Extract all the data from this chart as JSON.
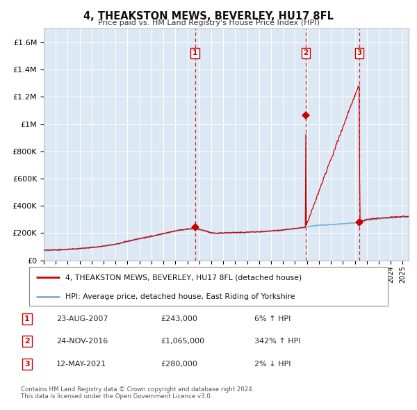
{
  "title": "4, THEAKSTON MEWS, BEVERLEY, HU17 8FL",
  "subtitle": "Price paid vs. HM Land Registry's House Price Index (HPI)",
  "legend_line1": "4, THEAKSTON MEWS, BEVERLEY, HU17 8FL (detached house)",
  "legend_line2": "HPI: Average price, detached house, East Riding of Yorkshire",
  "table_rows": [
    {
      "num": "1",
      "date": "23-AUG-2007",
      "price": "£243,000",
      "change": "6% ↑ HPI"
    },
    {
      "num": "2",
      "date": "24-NOV-2016",
      "price": "£1,065,000",
      "change": "342% ↑ HPI"
    },
    {
      "num": "3",
      "date": "12-MAY-2021",
      "price": "£280,000",
      "change": "2% ↓ HPI"
    }
  ],
  "footer1": "Contains HM Land Registry data © Crown copyright and database right 2024.",
  "footer2": "This data is licensed under the Open Government Licence v3.0.",
  "bg_color": "#dce9f5",
  "grid_color": "#ffffff",
  "hpi_line_color": "#7bafd4",
  "price_line_color": "#cc0000",
  "dashed_line_color": "#cc0000",
  "ylim_max": 1700000,
  "yticks": [
    0,
    200000,
    400000,
    600000,
    800000,
    1000000,
    1200000,
    1400000,
    1600000
  ],
  "ytick_labels": [
    "£0",
    "£200K",
    "£400K",
    "£600K",
    "£800K",
    "£1M",
    "£1.2M",
    "£1.4M",
    "£1.6M"
  ],
  "sale1_year": 2007.646,
  "sale1_price": 243000,
  "sale2_year": 2016.899,
  "sale2_price": 1065000,
  "sale3_year": 2021.36,
  "sale3_price": 280000
}
